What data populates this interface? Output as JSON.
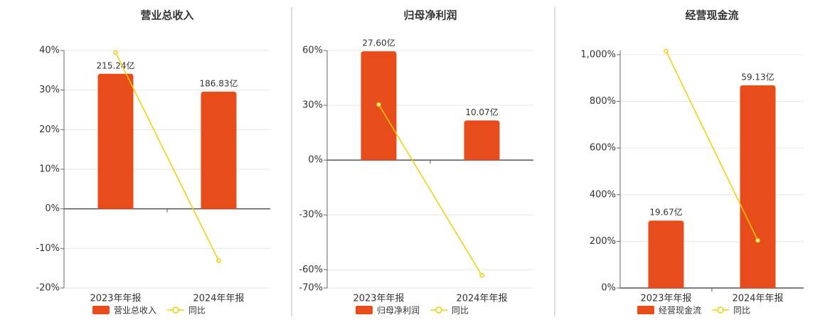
{
  "chart_data": [
    {
      "type": "bar-line",
      "title": "营业总收入",
      "categories": [
        "2023年年报",
        "2024年年报"
      ],
      "series": [
        {
          "name": "营业总收入",
          "type": "bar",
          "axis": "y2",
          "color": "#e84c1a",
          "values": [
            215.24,
            186.83
          ],
          "value_labels": [
            "215.24亿",
            "186.83亿"
          ]
        },
        {
          "name": "同比",
          "type": "line",
          "color": "#f2d000",
          "values": [
            39.5,
            -13.1
          ]
        }
      ],
      "ylim": [
        -20,
        40
      ],
      "yticks": [
        {
          "value": 40,
          "label": "40%"
        },
        {
          "value": 30,
          "label": "30%"
        },
        {
          "value": 20,
          "label": "20%"
        },
        {
          "value": 10,
          "label": "10%"
        },
        {
          "value": 0,
          "label": "0%"
        },
        {
          "value": -10,
          "label": "-10%"
        },
        {
          "value": -20,
          "label": "-20%"
        }
      ],
      "y2lim": [
        -126.2,
        252.4
      ],
      "grid": true
    },
    {
      "type": "bar-line",
      "title": "归母净利润",
      "categories": [
        "2023年年报",
        "2024年年报"
      ],
      "series": [
        {
          "name": "归母净利润",
          "type": "bar",
          "axis": "y2",
          "color": "#e84c1a",
          "values": [
            27.6,
            10.07
          ],
          "value_labels": [
            "27.60亿",
            "10.07亿"
          ]
        },
        {
          "name": "同比",
          "type": "line",
          "color": "#f2d000",
          "values": [
            30.4,
            -63.1
          ]
        }
      ],
      "ylim": [
        -70,
        60
      ],
      "yticks": [
        {
          "value": 60,
          "label": "60%"
        },
        {
          "value": 30,
          "label": "30%"
        },
        {
          "value": 0,
          "label": "0%"
        },
        {
          "value": -30,
          "label": "-30%"
        },
        {
          "value": -60,
          "label": "-60%"
        },
        {
          "value": -70,
          "label": "-70%"
        }
      ],
      "y2lim": [
        -32.4,
        27.8
      ],
      "grid": true
    },
    {
      "type": "bar-line",
      "title": "经营现金流",
      "categories": [
        "2023年年报",
        "2024年年报"
      ],
      "series": [
        {
          "name": "经营现金流",
          "type": "bar",
          "axis": "y2",
          "color": "#e84c1a",
          "values": [
            19.67,
            59.13
          ],
          "value_labels": [
            "19.67亿",
            "59.13亿"
          ]
        },
        {
          "name": "同比",
          "type": "line",
          "color": "#f2d000",
          "values": [
            1015,
            204
          ]
        }
      ],
      "ylim": [
        0,
        1018
      ],
      "yticks": [
        {
          "value": 1000,
          "label": "1,000%"
        },
        {
          "value": 800,
          "label": "800%"
        },
        {
          "value": 600,
          "label": "600%"
        },
        {
          "value": 400,
          "label": "400%"
        },
        {
          "value": 200,
          "label": "200%"
        },
        {
          "value": 0,
          "label": "0%"
        }
      ],
      "y2lim": [
        0,
        69.3
      ],
      "grid": true
    }
  ]
}
